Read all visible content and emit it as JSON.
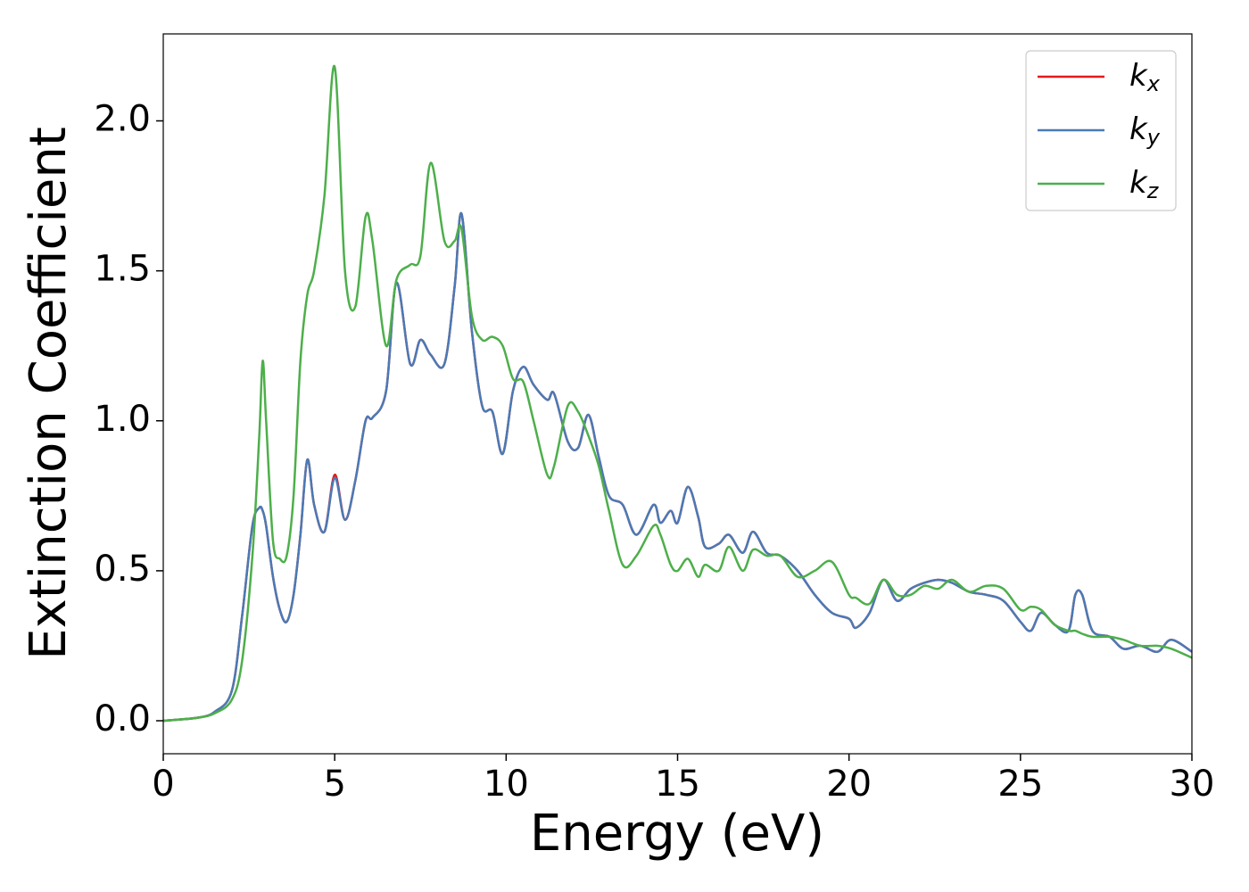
{
  "chart_data": {
    "type": "line",
    "xlabel": "Energy (eV)",
    "ylabel": "Extinction Coefficient",
    "x": [
      0,
      1,
      1.5,
      2,
      2.3,
      2.6,
      2.8,
      2.9,
      3.0,
      3.2,
      3.4,
      3.6,
      3.8,
      4.0,
      4.2,
      4.4,
      4.7,
      5.0,
      5.3,
      5.6,
      5.9,
      6.1,
      6.5,
      6.8,
      7.2,
      7.5,
      7.8,
      8.2,
      8.5,
      8.7,
      9.0,
      9.3,
      9.6,
      9.9,
      10.2,
      10.5,
      10.8,
      11.2,
      11.4,
      11.8,
      12.1,
      12.4,
      12.7,
      13.0,
      13.4,
      13.8,
      14.3,
      14.5,
      14.8,
      15.0,
      15.3,
      15.6,
      15.8,
      16.2,
      16.5,
      16.9,
      17.2,
      17.6,
      18.0,
      18.5,
      19.0,
      19.5,
      20.0,
      20.2,
      20.6,
      21.0,
      21.4,
      21.8,
      22.2,
      22.6,
      23.0,
      23.5,
      24.0,
      24.5,
      25.0,
      25.3,
      25.6,
      26.0,
      26.4,
      26.6,
      26.8,
      27.1,
      27.6,
      28.0,
      28.5,
      29.0,
      29.4,
      30
    ],
    "series": [
      {
        "name": "kx",
        "color": "#e41a1c",
        "values": [
          0,
          0.01,
          0.03,
          0.1,
          0.35,
          0.65,
          0.71,
          0.7,
          0.65,
          0.48,
          0.37,
          0.33,
          0.42,
          0.62,
          0.87,
          0.72,
          0.63,
          0.82,
          0.67,
          0.8,
          1.0,
          1.01,
          1.1,
          1.46,
          1.19,
          1.27,
          1.22,
          1.19,
          1.45,
          1.69,
          1.3,
          1.05,
          1.03,
          0.89,
          1.1,
          1.18,
          1.12,
          1.07,
          1.09,
          0.93,
          0.91,
          1.02,
          0.88,
          0.75,
          0.72,
          0.62,
          0.72,
          0.66,
          0.7,
          0.66,
          0.78,
          0.68,
          0.58,
          0.59,
          0.62,
          0.56,
          0.63,
          0.56,
          0.55,
          0.5,
          0.42,
          0.36,
          0.34,
          0.31,
          0.36,
          0.47,
          0.4,
          0.44,
          0.46,
          0.47,
          0.46,
          0.43,
          0.42,
          0.4,
          0.33,
          0.3,
          0.36,
          0.32,
          0.3,
          0.42,
          0.42,
          0.3,
          0.28,
          0.24,
          0.25,
          0.23,
          0.27,
          0.23
        ]
      },
      {
        "name": "ky",
        "color": "#4a7ab5",
        "values": [
          0,
          0.01,
          0.03,
          0.1,
          0.35,
          0.65,
          0.71,
          0.7,
          0.65,
          0.48,
          0.37,
          0.33,
          0.42,
          0.62,
          0.87,
          0.72,
          0.63,
          0.81,
          0.67,
          0.8,
          1.0,
          1.01,
          1.1,
          1.46,
          1.19,
          1.27,
          1.22,
          1.19,
          1.45,
          1.69,
          1.3,
          1.05,
          1.03,
          0.89,
          1.1,
          1.18,
          1.12,
          1.07,
          1.09,
          0.93,
          0.91,
          1.02,
          0.88,
          0.75,
          0.72,
          0.62,
          0.72,
          0.66,
          0.7,
          0.66,
          0.78,
          0.68,
          0.58,
          0.59,
          0.62,
          0.56,
          0.63,
          0.56,
          0.55,
          0.5,
          0.42,
          0.36,
          0.34,
          0.31,
          0.36,
          0.47,
          0.4,
          0.44,
          0.46,
          0.47,
          0.46,
          0.43,
          0.42,
          0.4,
          0.33,
          0.3,
          0.36,
          0.32,
          0.3,
          0.42,
          0.42,
          0.3,
          0.28,
          0.24,
          0.25,
          0.23,
          0.27,
          0.23
        ]
      },
      {
        "name": "kz",
        "color": "#4daf4a",
        "values": [
          0,
          0.01,
          0.025,
          0.07,
          0.2,
          0.55,
          0.95,
          1.2,
          1.0,
          0.6,
          0.54,
          0.55,
          0.75,
          1.2,
          1.42,
          1.5,
          1.75,
          2.18,
          1.5,
          1.38,
          1.68,
          1.6,
          1.25,
          1.47,
          1.52,
          1.55,
          1.86,
          1.6,
          1.6,
          1.64,
          1.35,
          1.27,
          1.28,
          1.25,
          1.14,
          1.13,
          1.0,
          0.82,
          0.85,
          1.05,
          1.03,
          0.95,
          0.85,
          0.7,
          0.52,
          0.55,
          0.65,
          0.62,
          0.52,
          0.5,
          0.54,
          0.48,
          0.52,
          0.5,
          0.58,
          0.5,
          0.57,
          0.55,
          0.55,
          0.48,
          0.5,
          0.53,
          0.42,
          0.41,
          0.39,
          0.47,
          0.42,
          0.42,
          0.45,
          0.44,
          0.47,
          0.43,
          0.45,
          0.44,
          0.37,
          0.38,
          0.37,
          0.32,
          0.3,
          0.3,
          0.29,
          0.28,
          0.28,
          0.27,
          0.25,
          0.25,
          0.24,
          0.21
        ]
      }
    ],
    "xlim": [
      0,
      30
    ],
    "xticks": [
      0,
      5,
      10,
      15,
      20,
      25,
      30
    ],
    "ylim": [
      -0.11,
      2.29
    ],
    "yticks": [
      {
        "value": 0,
        "label": "0.0"
      },
      0.5,
      {
        "value": 1,
        "label": "1.0"
      },
      1.5,
      {
        "value": 2,
        "label": "2.0"
      }
    ],
    "legend": "upper right"
  }
}
